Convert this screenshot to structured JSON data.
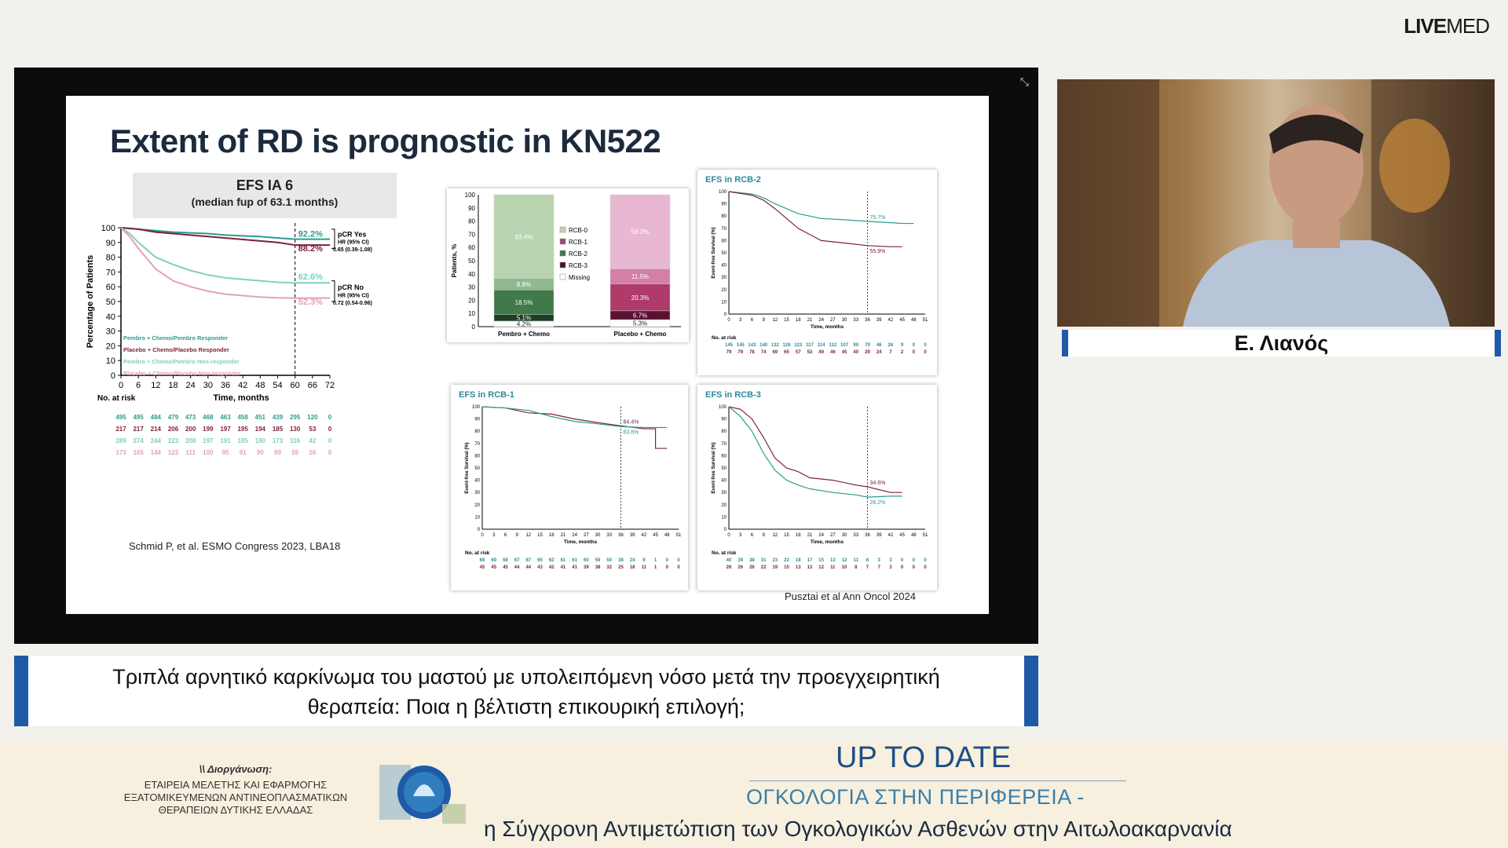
{
  "brand": {
    "live": "LIVE",
    "med": "MED"
  },
  "slide": {
    "title": "Extent of RD is prognostic in KN522",
    "efs_title": "EFS IA 6",
    "efs_sub": "(median fup of 63.1 months)",
    "ref_left": "Schmid P, et al. ESMO Congress 2023, LBA18",
    "ref_right": "Pusztai et al Ann Oncol 2024"
  },
  "km_main": {
    "ylabel": "Percentage of Patients",
    "xlabel": "Time, months",
    "yticks": [
      0,
      10,
      20,
      30,
      40,
      50,
      60,
      70,
      80,
      90,
      100
    ],
    "xticks": [
      0,
      6,
      12,
      18,
      24,
      30,
      36,
      42,
      48,
      54,
      60,
      66,
      72
    ],
    "labels": {
      "v1": "92.2%",
      "v2": "88.2%",
      "v3": "62.6%",
      "v4": "52.3%"
    },
    "pcr_yes": "pCR Yes",
    "hr_label": "HR (95% CI)",
    "hr_yes": "0.65 (0.39-1.08)",
    "pcr_no": "pCR No",
    "hr_no": "0.72 (0.54-0.96)",
    "legend": [
      "Pembro + Chemo/Pembro Responder",
      "Placebo + Chemo/Placebo Responder",
      "Pembro + Chemo/Pembro Non-responder",
      "Placebo + Chemo/Placebo Non-responder"
    ],
    "at_risk_title": "No. at risk",
    "at_risk": [
      [
        "495",
        "495",
        "484",
        "479",
        "473",
        "468",
        "463",
        "458",
        "451",
        "439",
        "295",
        "120",
        "0"
      ],
      [
        "217",
        "217",
        "214",
        "206",
        "200",
        "199",
        "197",
        "195",
        "194",
        "185",
        "130",
        "53",
        "0"
      ],
      [
        "289",
        "274",
        "244",
        "223",
        "208",
        "197",
        "191",
        "185",
        "180",
        "173",
        "116",
        "42",
        "0"
      ],
      [
        "173",
        "165",
        "144",
        "123",
        "111",
        "100",
        "95",
        "91",
        "90",
        "89",
        "59",
        "26",
        "0"
      ]
    ]
  },
  "bar_chart": {
    "ylabel": "Patients, %",
    "yticks": [
      0,
      10,
      20,
      30,
      40,
      50,
      60,
      70,
      80,
      90,
      100
    ],
    "categories": [
      "Pembro + Chemo",
      "Placebo + Chemo"
    ],
    "legend": [
      "RCB-0",
      "RCB-1",
      "RCB-2",
      "RCB-3",
      "Missing"
    ],
    "pembro_labels": [
      "63.4%",
      "8.8%",
      "18.5%",
      "5.1%",
      "4.2%"
    ],
    "placebo_labels": [
      "56.2%",
      "11.5%",
      "20.3%",
      "6.7%",
      "5.3%"
    ]
  },
  "rcb2": {
    "title": "EFS in RCB-2",
    "ylabel": "Event-free Survival (%)",
    "xlabel": "Time, months",
    "v_top": "75.7%",
    "v_bot": "55.9%",
    "risk_title": "No. at risk",
    "risk": [
      "145 145 143 140 132 126 123 117 114 112 107 90  70 46 26 9 0 0",
      "79 79 78 74 69 65 57 53 49 46 45 40  29 24 7 2 0 0"
    ]
  },
  "rcb1": {
    "title": "EFS in RCB-1",
    "ylabel": "Event-free Survival (%)",
    "xlabel": "Time, months",
    "v_top": "84.4%",
    "v_bot": "83.8%",
    "risk_title": "No. at risk",
    "risk": [
      "69 69 68 67 67 65 62 61 61 60 59 50 38 24 9 1 0 0",
      "45 45 45 44 44 43 42 41 41 39 38 32 25 18 11 1 0 0"
    ]
  },
  "rcb3": {
    "title": "EFS in RCB-3",
    "ylabel": "Event-free Survival (%)",
    "xlabel": "Time, months",
    "v_top": "34.6%",
    "v_bot": "26.2%",
    "risk_title": "No. at risk",
    "risk": [
      "40 39 38 31 23 22 18 17 15 13 12 11 6 3 3 0 0 0",
      "26 26 26 22 19 15 13 13 12 11 10 8 7 7 3 0 0 0"
    ]
  },
  "small_xticks": [
    0,
    3,
    6,
    9,
    12,
    15,
    18,
    21,
    24,
    27,
    30,
    33,
    36,
    39,
    42,
    45,
    48,
    51
  ],
  "speaker": {
    "name": "Ε. Λιανός"
  },
  "caption": {
    "line1": "Τριπλά αρνητικό καρκίνωμα του μαστού με υπολειπόμενη νόσο μετά την προεγχειρητική",
    "line2": "θεραπεία: Ποια η βέλτιστη επικουρική επιλογή;"
  },
  "footer": {
    "org_label": "\\\\ Διοργάνωση:",
    "org_lines": [
      "ΕΤΑΙΡΕΙΑ ΜΕΛΕΤΗΣ ΚΑΙ ΕΦΑΡΜΟΓΗΣ",
      "ΕΞΑΤΟΜΙΚΕΥΜΕΝΩΝ ΑΝΤΙΝΕΟΠΛΑΣΜΑΤΙΚΩΝ",
      "ΘΕΡΑΠΕΙΩΝ ΔΥΤΙΚΗΣ ΕΛΛΑΔΑΣ"
    ],
    "title": "UP TO DATE",
    "sub1": "ΟΓΚΟΛΟΓΙΑ ΣΤΗΝ ΠΕΡΙΦΕΡΕΙΑ -",
    "sub2": "η Σύγχρονη Αντιμετώπιση των Ογκολογικών Ασθενών στην Αιτωλοακαρνανία"
  },
  "colors": {
    "teal": "#2a9d8f",
    "maroon": "#7b2140",
    "lightteal": "#7fcfc0",
    "pink": "#e4a0bd",
    "blue": "#1f5aa6"
  }
}
